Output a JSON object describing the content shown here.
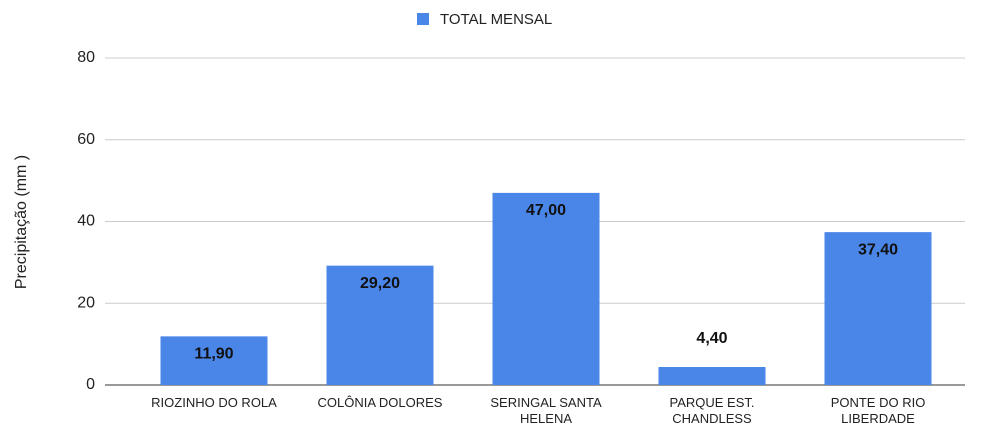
{
  "chart_data": {
    "type": "bar",
    "y_label": "Precipitação (mm )",
    "categories": [
      "RIOZINHO DO ROLA",
      "COLÔNIA DOLORES",
      "SERINGAL SANTA HELENA",
      "PARQUE EST. CHANDLESS",
      "PONTE DO RIO LIBERDADE"
    ],
    "series": [
      {
        "name": "TOTAL MENSAL",
        "color": "#4a86e8",
        "values": [
          11.9,
          29.2,
          47.0,
          4.4,
          37.4
        ],
        "value_labels": [
          "11,90",
          "29,20",
          "47,00",
          "4,40",
          "37,40"
        ]
      }
    ],
    "ylim": [
      0,
      80
    ],
    "yticks": [
      0,
      20,
      40,
      60,
      80
    ],
    "grid": true,
    "legend": "top"
  }
}
